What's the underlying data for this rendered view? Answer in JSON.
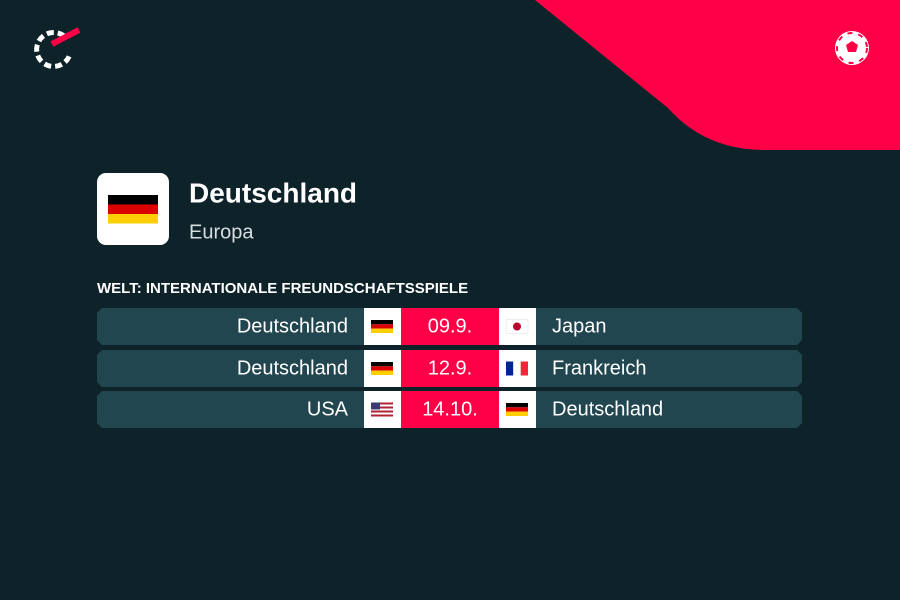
{
  "header": {
    "title": "Deutschland",
    "subtitle": "Europa"
  },
  "competition": "WELT: INTERNATIONALE FREUNDSCHAFTSSPIELE",
  "matches": [
    {
      "home": "Deutschland",
      "date": "09.9.",
      "away": "Japan"
    },
    {
      "home": "Deutschland",
      "date": "12.9.",
      "away": "Frankreich"
    },
    {
      "home": "USA",
      "date": "14.10.",
      "away": "Deutschland"
    }
  ]
}
